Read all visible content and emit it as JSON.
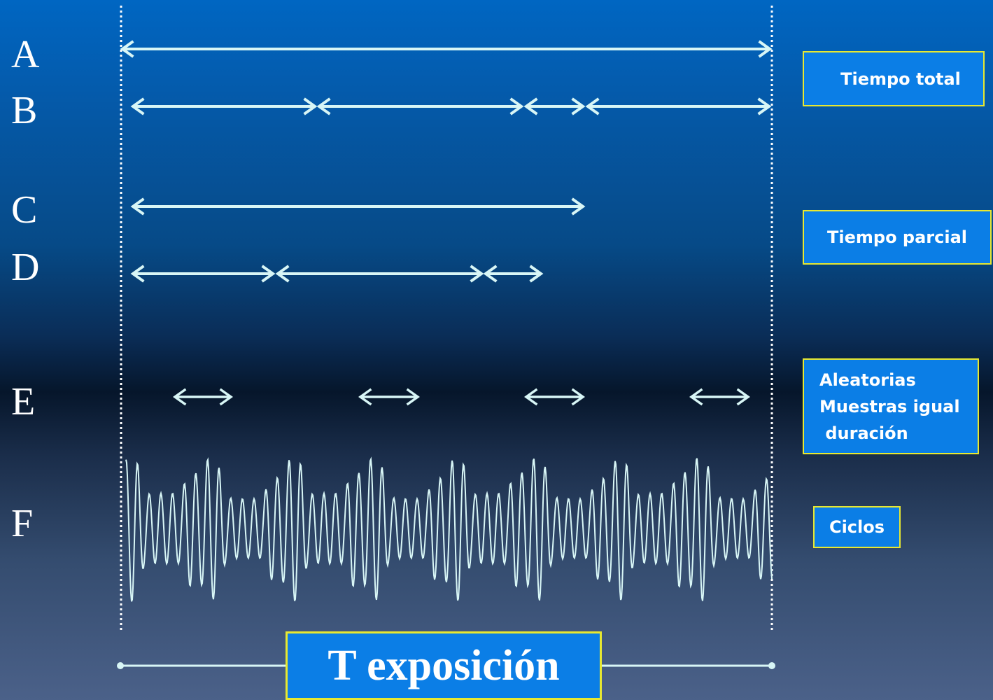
{
  "rows": [
    {
      "letter": "A"
    },
    {
      "letter": "B"
    },
    {
      "letter": "C"
    },
    {
      "letter": "D"
    },
    {
      "letter": "E"
    },
    {
      "letter": "F"
    }
  ],
  "labels": {
    "tiempo_total": "Tiempo total",
    "tiempo_parcial": "Tiempo parcial",
    "aleatorias": [
      "Aleatorias",
      "Muestras igual",
      " duración"
    ],
    "ciclos": "Ciclos"
  },
  "exposure_label": "T exposición",
  "colors": {
    "arrow": "#d8f6f6",
    "box_fill": "#0b7ee6",
    "box_border": "#e8e830",
    "text": "#ffffff"
  }
}
